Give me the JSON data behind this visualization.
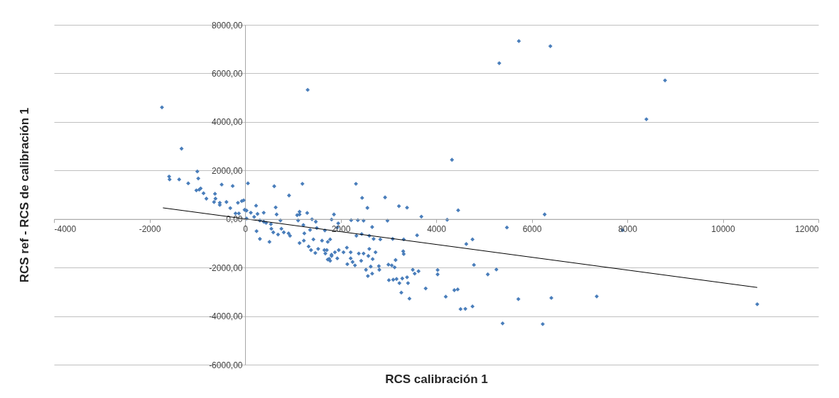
{
  "chart_data": {
    "type": "scatter",
    "xlabel": "RCS calibración 1",
    "ylabel": "RCS  ref - RCS de calibración 1",
    "xlim": [
      -4000,
      12000
    ],
    "xticks": [
      -4000,
      -2000,
      0,
      2000,
      4000,
      6000,
      8000,
      10000,
      12000
    ],
    "ylim": [
      -6000,
      8000
    ],
    "yticks": [
      {
        "value": -6000,
        "label": "-6000,00"
      },
      {
        "value": -4000,
        "label": "-4000,00"
      },
      {
        "value": -2000,
        "label": "-2000,00"
      },
      {
        "value": 0,
        "label": "0,00"
      },
      {
        "value": 2000,
        "label": "2000,00"
      },
      {
        "value": 4000,
        "label": "4000,00"
      },
      {
        "value": 6000,
        "label": "6000,00"
      },
      {
        "value": 8000,
        "label": "8000,00"
      }
    ],
    "grid": "y",
    "series": [
      {
        "marker": "diamond",
        "color": "#4a7ebb",
        "x": [
          5730,
          6390,
          5320,
          8790,
          8400,
          4330,
          4460,
          6270,
          4230,
          5480,
          7900,
          4760,
          4630,
          4790,
          4030,
          4030,
          5260,
          5080,
          4380,
          4450,
          4200,
          5720,
          6410,
          7360,
          10720,
          4510,
          4610,
          4760,
          5390,
          6230,
          1200,
          2320,
          920,
          2450,
          2930,
          2560,
          3220,
          3390,
          3690,
          2980,
          2220,
          2360,
          2480,
          1950,
          1810,
          1860,
          1300,
          1140,
          1090,
          1110,
          1220,
          1400,
          1480,
          1500,
          1360,
          910,
          940,
          1670,
          2660,
          2600,
          2690,
          2830,
          3090,
          3320,
          3600,
          2330,
          2440,
          1240,
          1140,
          1230,
          1430,
          1610,
          1730,
          1780,
          1330,
          1380,
          1470,
          1530,
          1660,
          1680,
          1730,
          1810,
          1880,
          1960,
          1930,
          1780,
          2060,
          2130,
          2210,
          2210,
          2140,
          2250,
          2300,
          2380,
          2430,
          2480,
          2580,
          2600,
          2670,
          2730,
          2630,
          2530,
          2660,
          2570,
          2800,
          2810,
          3000,
          3070,
          3130,
          3150,
          3310,
          3320,
          3010,
          3100,
          3170,
          3290,
          3230,
          3410,
          3390,
          3270,
          3440,
          3510,
          3550,
          3630,
          3780,
          -1590,
          -1580,
          -1380,
          -1190,
          -1000,
          -980,
          -1020,
          -960,
          -930,
          -870,
          -810,
          -630,
          -620,
          -650,
          -530,
          -530,
          -490,
          -390,
          -310,
          -260,
          -150,
          -70,
          -30,
          -200,
          -130,
          -10,
          30,
          30,
          60,
          120,
          230,
          190,
          260,
          390,
          310,
          390,
          440,
          540,
          550,
          590,
          640,
          660,
          610,
          740,
          760,
          690,
          810,
          1140,
          1710,
          1810,
          1760,
          1930,
          310,
          510,
          240,
          -1740,
          -1330,
          1310
        ],
        "values": [
          7330,
          7120,
          6420,
          5710,
          4110,
          2440,
          360,
          190,
          -30,
          -350,
          -460,
          -840,
          -1030,
          -1890,
          -2100,
          -2280,
          -2080,
          -2280,
          -2930,
          -2900,
          -3200,
          -3300,
          -3250,
          -3190,
          -3510,
          -3710,
          -3700,
          -3600,
          -4300,
          -4330,
          1450,
          1450,
          970,
          870,
          890,
          460,
          530,
          470,
          100,
          -70,
          -50,
          -50,
          -70,
          -180,
          -20,
          190,
          250,
          300,
          160,
          -60,
          -250,
          -10,
          -110,
          -370,
          -450,
          -590,
          -690,
          -470,
          -330,
          -690,
          -820,
          -840,
          -820,
          -840,
          -670,
          -690,
          -620,
          -590,
          -990,
          -890,
          -840,
          -890,
          -940,
          -840,
          -1130,
          -1280,
          -1400,
          -1230,
          -1280,
          -1420,
          -1670,
          -1520,
          -1370,
          -1280,
          -1620,
          -1720,
          -1370,
          -1180,
          -1370,
          -1620,
          -1860,
          -1770,
          -1910,
          -1420,
          -1720,
          -1420,
          -1520,
          -1230,
          -1650,
          -1370,
          -1960,
          -2090,
          -2250,
          -2350,
          -1940,
          -2090,
          -1880,
          -1910,
          -1990,
          -1690,
          -1330,
          -1440,
          -2520,
          -2500,
          -2470,
          -2450,
          -2640,
          -2640,
          -2400,
          -3030,
          -3280,
          -2090,
          -2250,
          -2150,
          -2860,
          1750,
          1630,
          1630,
          1470,
          1960,
          1670,
          1180,
          1210,
          1260,
          1060,
          840,
          1040,
          840,
          700,
          670,
          580,
          1420,
          700,
          450,
          1360,
          670,
          740,
          770,
          230,
          230,
          380,
          350,
          20,
          1470,
          260,
          550,
          90,
          210,
          260,
          -60,
          -110,
          -160,
          -210,
          -400,
          -550,
          480,
          190,
          1350,
          -60,
          -400,
          -640,
          -550,
          190,
          -1280,
          -1470,
          -1640,
          -350,
          -820,
          -940,
          -500,
          4600,
          2900,
          5320
        ]
      },
      {
        "type": "line",
        "marker": "none",
        "color": "#000000",
        "x": [
          -1720,
          10720
        ],
        "values": [
          460,
          -2820
        ]
      }
    ]
  }
}
